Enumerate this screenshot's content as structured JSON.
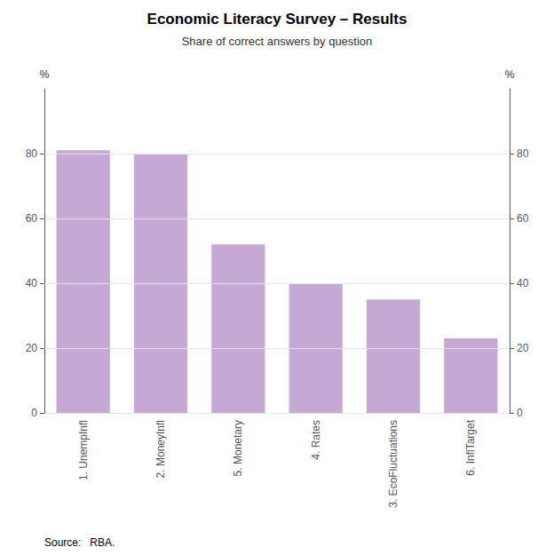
{
  "chart_data": {
    "type": "bar",
    "title": "Economic Literacy Survey – Results",
    "subtitle": "Share of correct answers by question",
    "categories": [
      "1. UnempInfl",
      "2. MoneyInfl",
      "5. Monetary",
      "4. Rates",
      "3. EcoFluctuations",
      "6. InflTarget"
    ],
    "values": [
      81,
      80,
      52,
      40,
      35,
      23
    ],
    "color": "#c5a8d4",
    "ylim": [
      0,
      100
    ],
    "yticks": [
      0,
      20,
      40,
      60,
      80
    ],
    "ylabel": "%",
    "y2lim": [
      0,
      100
    ],
    "y2ticks": [
      0,
      20,
      40,
      60,
      80
    ],
    "y2label": "%",
    "source": "Source:   RBA.",
    "grid": true
  }
}
